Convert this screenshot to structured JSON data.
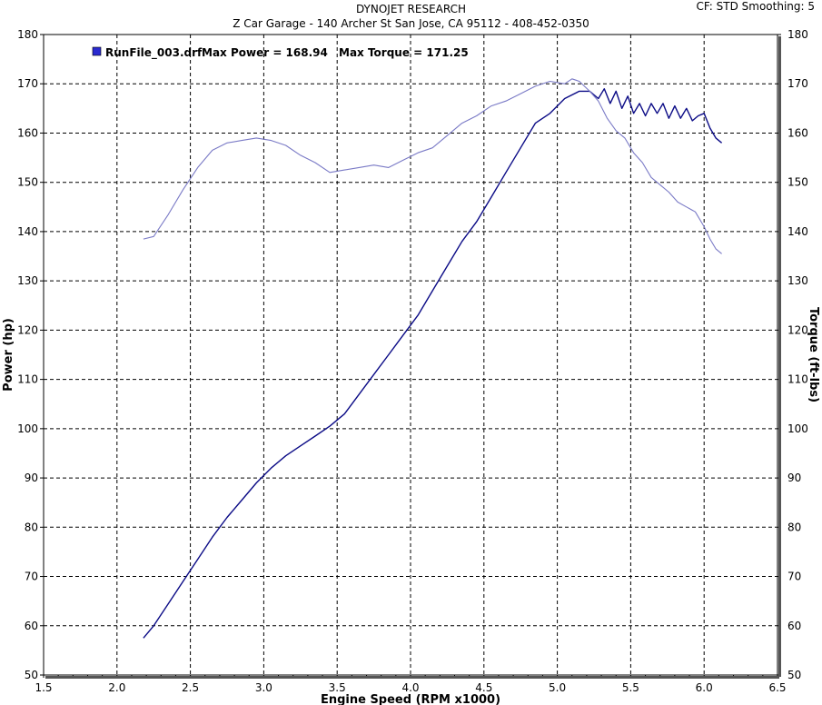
{
  "header": {
    "title": "DYNOJET RESEARCH",
    "subtitle": "Z Car Garage - 140 Archer St San Jose, CA 95112 - 408-452-0350",
    "settings": "CF: STD  Smoothing: 5"
  },
  "chart_data": {
    "type": "line",
    "xlabel": "Engine Speed (RPM x1000)",
    "ylabel": "Power (hp)",
    "y2label": "Torque (ft-lbs)",
    "xlim": [
      1.5,
      6.5
    ],
    "ylim": [
      50,
      180
    ],
    "y2lim": [
      50,
      180
    ],
    "x_ticks": [
      "1.5",
      "2.0",
      "2.5",
      "3.0",
      "3.5",
      "4.0",
      "4.5",
      "5.0",
      "5.5",
      "6.0",
      "6.5"
    ],
    "y_ticks": [
      "50",
      "60",
      "70",
      "80",
      "90",
      "100",
      "110",
      "120",
      "130",
      "140",
      "150",
      "160",
      "170",
      "180"
    ],
    "grid": true,
    "legend": {
      "run": "RunFile_003.drf",
      "max_power": "Max Power = 168.94",
      "max_torque": "Max Torque = 171.25",
      "placement": "top-left"
    },
    "colors": {
      "power": "#0b0b86",
      "torque": "#7a7ac6",
      "legend_box": "#2a2ad0"
    },
    "series": [
      {
        "id": "power",
        "x": [
          2.18,
          2.25,
          2.35,
          2.45,
          2.55,
          2.65,
          2.75,
          2.85,
          2.95,
          3.05,
          3.15,
          3.25,
          3.35,
          3.45,
          3.55,
          3.65,
          3.75,
          3.85,
          3.95,
          4.05,
          4.15,
          4.25,
          4.35,
          4.45,
          4.55,
          4.65,
          4.75,
          4.85,
          4.95,
          5.05,
          5.15,
          5.22,
          5.28,
          5.32,
          5.36,
          5.4,
          5.44,
          5.48,
          5.52,
          5.56,
          5.6,
          5.64,
          5.68,
          5.72,
          5.76,
          5.8,
          5.84,
          5.88,
          5.92,
          5.96,
          6.0,
          6.04,
          6.08,
          6.12
        ],
        "values": [
          57.5,
          60,
          64.5,
          69,
          73.5,
          78,
          82,
          85.5,
          89,
          92,
          94.5,
          96.5,
          98.5,
          100.5,
          103,
          107,
          111,
          115,
          119,
          123,
          128,
          133,
          138,
          142,
          147,
          152,
          157,
          162,
          164,
          167,
          168.5,
          168.5,
          167,
          169,
          166,
          168.5,
          165,
          167.5,
          164,
          166,
          163.5,
          166,
          164,
          166,
          163,
          165.5,
          163,
          165,
          162.5,
          163.5,
          164,
          161,
          159,
          158
        ]
      },
      {
        "id": "torque",
        "x": [
          2.18,
          2.25,
          2.35,
          2.45,
          2.55,
          2.65,
          2.75,
          2.85,
          2.95,
          3.05,
          3.15,
          3.25,
          3.35,
          3.45,
          3.55,
          3.65,
          3.75,
          3.85,
          3.95,
          4.05,
          4.15,
          4.25,
          4.35,
          4.45,
          4.55,
          4.65,
          4.75,
          4.85,
          4.95,
          5.05,
          5.1,
          5.15,
          5.22,
          5.28,
          5.34,
          5.4,
          5.46,
          5.52,
          5.58,
          5.64,
          5.7,
          5.76,
          5.82,
          5.88,
          5.94,
          6.0,
          6.04,
          6.08,
          6.12
        ],
        "values": [
          138.5,
          139,
          143.5,
          148.5,
          153,
          156.5,
          158,
          158.5,
          159,
          158.5,
          157.5,
          155.5,
          154,
          152,
          152.5,
          153,
          153.5,
          153,
          154.5,
          156,
          157,
          159.5,
          162,
          163.5,
          165.5,
          166.5,
          168,
          169.5,
          170.5,
          170,
          171,
          170.5,
          168.5,
          166.5,
          163,
          160.5,
          159,
          156,
          154,
          151,
          149.5,
          148,
          146,
          145,
          144,
          141,
          138.5,
          136.5,
          135.5
        ]
      }
    ]
  }
}
